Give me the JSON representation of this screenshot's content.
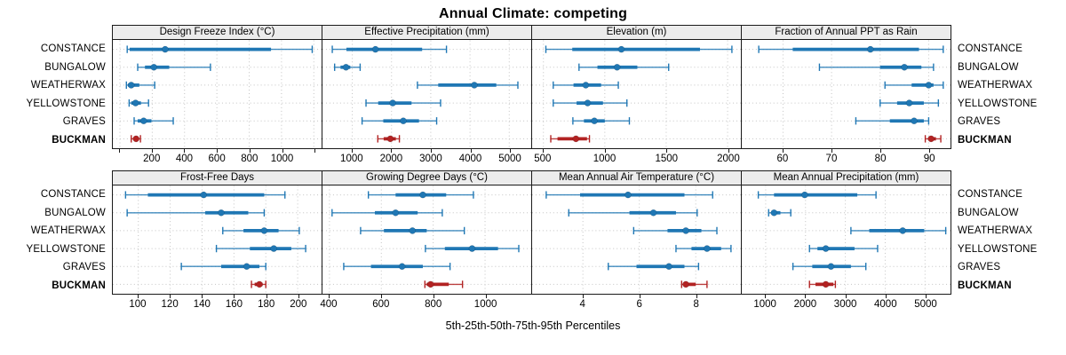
{
  "title": "Annual Climate: competing",
  "caption": "5th-25th-50th-75th-95th Percentiles",
  "categories": [
    "CONSTANCE",
    "BUNGALOW",
    "WEATHERWAX",
    "YELLOWSTONE",
    "GRAVES",
    "BUCKMAN"
  ],
  "highlight_category": "BUCKMAN",
  "percentile_labels": [
    "5th",
    "25th",
    "50th",
    "75th",
    "95th"
  ],
  "colors": {
    "series": "#1f77b4",
    "highlight": "#b22222",
    "grid": "#c3c3c3",
    "strip_bg": "#ececec",
    "panel_border": "#1a1a1a"
  },
  "chart_data": {
    "type": "dot-whisker-percentiles",
    "layout": "2 rows x 4 columns trellis",
    "legend_position": "none",
    "grid": "dotted",
    "panels": [
      {
        "title": "Design Freeze Index (°C)",
        "xlim": [
          -44,
          1248
        ],
        "ticks": [
          0,
          200,
          400,
          600,
          800,
          1000,
          1200
        ],
        "tick_labels": [
          "",
          "200",
          "400",
          "600",
          "800",
          "1000",
          ""
        ],
        "rows": [
          [
            45,
            60,
            280,
            935,
            1190
          ],
          [
            110,
            155,
            210,
            305,
            560
          ],
          [
            40,
            50,
            70,
            120,
            215
          ],
          [
            57,
            70,
            97,
            130,
            177
          ],
          [
            88,
            110,
            147,
            195,
            330
          ],
          [
            70,
            85,
            100,
            115,
            127
          ]
        ]
      },
      {
        "title": "Effective Precipitation (mm)",
        "xlim": [
          240,
          5560
        ],
        "ticks": [
          1000,
          2000,
          3000,
          4000,
          5000
        ],
        "tick_labels": [
          "1000",
          "2000",
          "3000",
          "4000",
          "5000"
        ],
        "rows": [
          [
            490,
            850,
            1590,
            2780,
            3400
          ],
          [
            550,
            700,
            840,
            950,
            1200
          ],
          [
            2660,
            3190,
            4110,
            4670,
            5220
          ],
          [
            1350,
            1660,
            2030,
            2510,
            3250
          ],
          [
            1250,
            1790,
            2300,
            2700,
            3150
          ],
          [
            1650,
            1800,
            1970,
            2110,
            2200
          ]
        ]
      },
      {
        "title": "Elevation (m)",
        "xlim": [
          408,
          2108
        ],
        "ticks": [
          500,
          1000,
          1500,
          2000
        ],
        "tick_labels": [
          "500",
          "1000",
          "1500",
          "2000"
        ],
        "rows": [
          [
            520,
            735,
            1135,
            1775,
            2035
          ],
          [
            790,
            940,
            1100,
            1265,
            1520
          ],
          [
            580,
            745,
            845,
            970,
            1110
          ],
          [
            580,
            770,
            860,
            985,
            1180
          ],
          [
            740,
            830,
            915,
            1000,
            1200
          ],
          [
            560,
            615,
            765,
            855,
            875
          ]
        ]
      },
      {
        "title": "Fraction of Annual PPT as Rain",
        "xlim": [
          51.5,
          94.5
        ],
        "ticks": [
          60,
          70,
          80,
          90
        ],
        "tick_labels": [
          "60",
          "70",
          "80",
          "90"
        ],
        "rows": [
          [
            55,
            62,
            78,
            88,
            93
          ],
          [
            67.5,
            80,
            85,
            88.5,
            91
          ],
          [
            81,
            86.5,
            90,
            91,
            93
          ],
          [
            80,
            83.5,
            86,
            89,
            92
          ],
          [
            75,
            82,
            87,
            89,
            90
          ],
          [
            89.3,
            90,
            90.5,
            91.5,
            92.5
          ]
        ]
      },
      {
        "title": "Frost-Free Days",
        "xlim": [
          84,
          215
        ],
        "ticks": [
          100,
          120,
          140,
          160,
          180,
          200
        ],
        "tick_labels": [
          "100",
          "120",
          "140",
          "160",
          "180",
          "200"
        ],
        "rows": [
          [
            92,
            106,
            141,
            179,
            192
          ],
          [
            93,
            142,
            152,
            169,
            179
          ],
          [
            153,
            166,
            179,
            188,
            201
          ],
          [
            149,
            170,
            185,
            196,
            205
          ],
          [
            127,
            152,
            168,
            176,
            180
          ],
          [
            171,
            173,
            176,
            178,
            180
          ]
        ]
      },
      {
        "title": "Growing Degree Days (°C)",
        "xlim": [
          373,
          1178
        ],
        "ticks": [
          400,
          600,
          800,
          1000
        ],
        "tick_labels": [
          "400",
          "600",
          "800",
          "1000"
        ],
        "rows": [
          [
            550,
            655,
            760,
            850,
            955
          ],
          [
            410,
            575,
            655,
            740,
            835
          ],
          [
            520,
            610,
            720,
            775,
            920
          ],
          [
            770,
            845,
            950,
            1050,
            1130
          ],
          [
            455,
            560,
            680,
            760,
            865
          ],
          [
            768,
            775,
            790,
            860,
            913
          ]
        ]
      },
      {
        "title": "Mean Annual Air Temperature (°C)",
        "xlim": [
          2.2,
          9.6
        ],
        "ticks": [
          4,
          6,
          8
        ],
        "tick_labels": [
          "4",
          "6",
          "8"
        ],
        "rows": [
          [
            2.7,
            3.9,
            5.6,
            7.6,
            8.6
          ],
          [
            3.5,
            5.65,
            6.5,
            7.3,
            8.05
          ],
          [
            5.8,
            7.0,
            7.65,
            8.2,
            8.75
          ],
          [
            7.3,
            7.85,
            8.4,
            8.9,
            9.25
          ],
          [
            4.9,
            5.9,
            7.05,
            7.6,
            8.1
          ],
          [
            7.5,
            7.55,
            7.65,
            8.0,
            8.4
          ]
        ]
      },
      {
        "title": "Mean Annual Precipitation (mm)",
        "xlim": [
          400,
          5640
        ],
        "ticks": [
          1000,
          2000,
          3000,
          4000,
          5000
        ],
        "tick_labels": [
          "1000",
          "2000",
          "3000",
          "4000",
          "5000"
        ],
        "rows": [
          [
            815,
            1210,
            1980,
            3300,
            3770
          ],
          [
            1075,
            1140,
            1210,
            1370,
            1630
          ],
          [
            3140,
            3600,
            4440,
            4980,
            5520
          ],
          [
            2100,
            2300,
            2510,
            3230,
            3810
          ],
          [
            1685,
            2170,
            2640,
            3140,
            3515
          ],
          [
            2100,
            2250,
            2510,
            2700,
            2750
          ]
        ]
      }
    ]
  }
}
